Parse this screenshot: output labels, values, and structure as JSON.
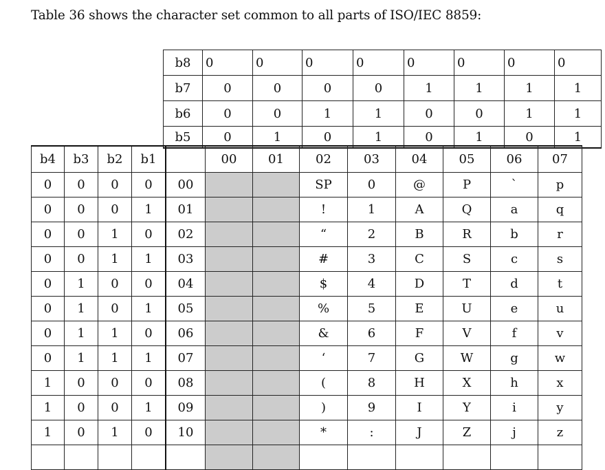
{
  "intro": "Table 36 shows the character set common to all parts of ISO/IEC 8859:",
  "bit_rows": [
    {
      "label": "b8",
      "values": [
        "0",
        "0",
        "0",
        "0",
        "0",
        "0",
        "0",
        "0"
      ]
    },
    {
      "label": "b7",
      "values": [
        "0",
        "0",
        "0",
        "0",
        "1",
        "1",
        "1",
        "1"
      ]
    },
    {
      "label": "b6",
      "values": [
        "0",
        "0",
        "1",
        "1",
        "0",
        "0",
        "1",
        "1"
      ]
    },
    {
      "label": "b5",
      "values": [
        "0",
        "1",
        "0",
        "1",
        "0",
        "1",
        "0",
        "1"
      ]
    }
  ],
  "low_bit_headers": [
    "b4",
    "b3",
    "b2",
    "b1"
  ],
  "column_codes": [
    "00",
    "01",
    "02",
    "03",
    "04",
    "05",
    "06",
    "07"
  ],
  "shaded_columns": [
    "00",
    "01"
  ],
  "shade_color": "#cccccc",
  "rows": [
    {
      "bits": [
        "0",
        "0",
        "0",
        "0"
      ],
      "code": "00",
      "chars": [
        "",
        "",
        "SP",
        "0",
        "@",
        "P",
        "`",
        "p"
      ]
    },
    {
      "bits": [
        "0",
        "0",
        "0",
        "1"
      ],
      "code": "01",
      "chars": [
        "",
        "",
        "!",
        "1",
        "A",
        "Q",
        "a",
        "q"
      ]
    },
    {
      "bits": [
        "0",
        "0",
        "1",
        "0"
      ],
      "code": "02",
      "chars": [
        "",
        "",
        "“",
        "2",
        "B",
        "R",
        "b",
        "r"
      ]
    },
    {
      "bits": [
        "0",
        "0",
        "1",
        "1"
      ],
      "code": "03",
      "chars": [
        "",
        "",
        "#",
        "3",
        "C",
        "S",
        "c",
        "s"
      ]
    },
    {
      "bits": [
        "0",
        "1",
        "0",
        "0"
      ],
      "code": "04",
      "chars": [
        "",
        "",
        "$",
        "4",
        "D",
        "T",
        "d",
        "t"
      ]
    },
    {
      "bits": [
        "0",
        "1",
        "0",
        "1"
      ],
      "code": "05",
      "chars": [
        "",
        "",
        "%",
        "5",
        "E",
        "U",
        "e",
        "u"
      ]
    },
    {
      "bits": [
        "0",
        "1",
        "1",
        "0"
      ],
      "code": "06",
      "chars": [
        "",
        "",
        "&",
        "6",
        "F",
        "V",
        "f",
        "v"
      ]
    },
    {
      "bits": [
        "0",
        "1",
        "1",
        "1"
      ],
      "code": "07",
      "chars": [
        "",
        "",
        "‘",
        "7",
        "G",
        "W",
        "g",
        "w"
      ]
    },
    {
      "bits": [
        "1",
        "0",
        "0",
        "0"
      ],
      "code": "08",
      "chars": [
        "",
        "",
        "(",
        "8",
        "H",
        "X",
        "h",
        "x"
      ]
    },
    {
      "bits": [
        "1",
        "0",
        "0",
        "1"
      ],
      "code": "09",
      "chars": [
        "",
        "",
        ")",
        "9",
        "I",
        "Y",
        "i",
        "y"
      ]
    },
    {
      "bits": [
        "1",
        "0",
        "1",
        "0"
      ],
      "code": "10",
      "chars": [
        "",
        "",
        "*",
        ":",
        "J",
        "Z",
        "j",
        "z"
      ]
    },
    {
      "bits": [
        "",
        "",
        "",
        ""
      ],
      "code": "",
      "chars": [
        "",
        "",
        "",
        "",
        "",
        "",
        "",
        ""
      ]
    }
  ]
}
